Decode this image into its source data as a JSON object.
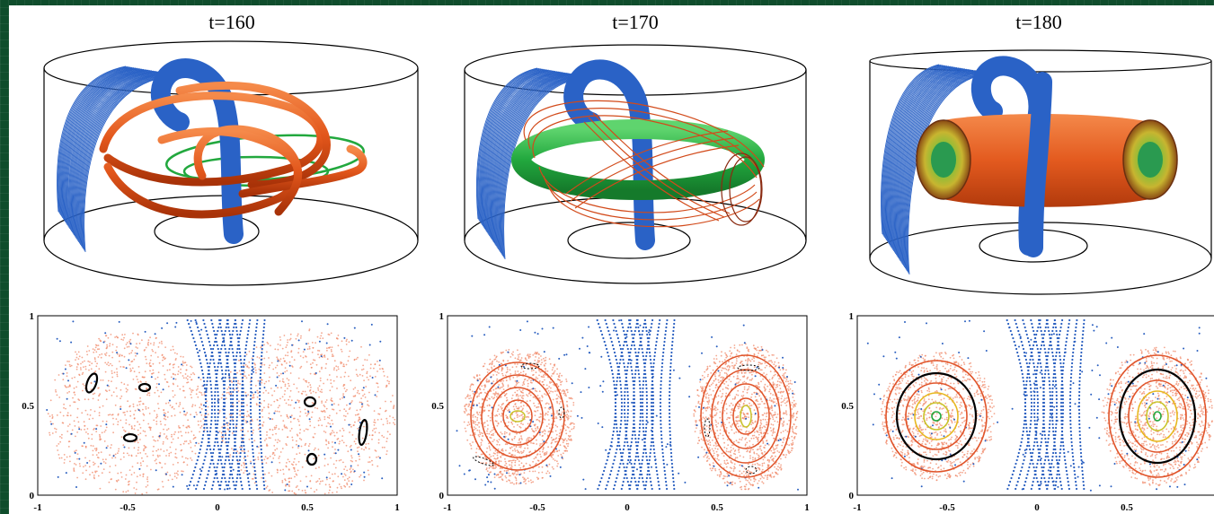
{
  "panels": [
    {
      "time_label": "t=160"
    },
    {
      "time_label": "t=170"
    },
    {
      "time_label": "t=180"
    }
  ],
  "poincare_axes": {
    "x_ticks": [
      "-1",
      "-0.5",
      "0",
      "0.5",
      "1"
    ],
    "y_ticks": [
      "0",
      "0.5",
      "1"
    ]
  },
  "colors": {
    "background": "#0f4d2c",
    "blue_tube": "#2a62c6",
    "orange_tube": "#e85a1c",
    "green_tube": "#2bb24a",
    "chaotic_points": "#f08a6a",
    "regular_points": "#2a5fc0",
    "island_contour": "#000000"
  },
  "icons": [
    "cylinder-3d-render",
    "poincare-section-plot"
  ]
}
